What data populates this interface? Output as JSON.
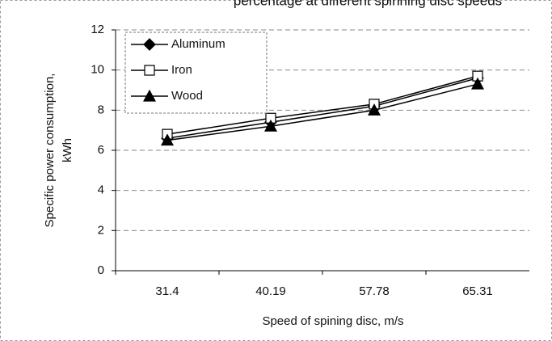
{
  "chart_data": {
    "type": "line",
    "title": "percentage at different spinning disc speeds",
    "x_label": "Speed of spining disc, m/s",
    "y_label": [
      "Specific power consumption,",
      "kWh"
    ],
    "categories": [
      "31.4",
      "40.19",
      "57.78",
      "65.31"
    ],
    "series": [
      {
        "name": "Aluminum",
        "color": "#000000",
        "marker": "diamond",
        "values": [
          6.6,
          7.4,
          8.2,
          9.6
        ]
      },
      {
        "name": "Iron",
        "color": "#000000",
        "marker": "square",
        "values": [
          6.8,
          7.6,
          8.3,
          9.7
        ]
      },
      {
        "name": "Wood",
        "color": "#000000",
        "marker": "triangle",
        "values": [
          6.5,
          7.2,
          8.0,
          9.3
        ]
      }
    ],
    "ylim": [
      0,
      12
    ],
    "yticks": [
      0,
      2,
      4,
      6,
      8,
      10,
      12
    ],
    "grid": true,
    "legend": "upper left"
  }
}
